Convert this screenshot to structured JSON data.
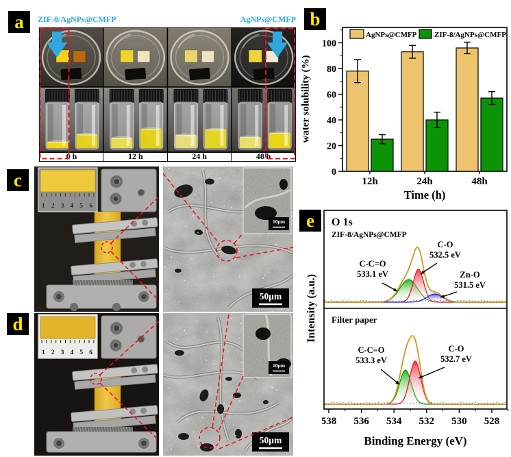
{
  "figure_labels": {
    "a": "a",
    "b": "b",
    "c": "c",
    "d": "d",
    "e": "e"
  },
  "panel_a": {
    "label_left": "ZIF-8/AgNPs@CMFP",
    "label_right": "AgNPs@CMFP",
    "timepoints": [
      "0 h",
      "12 h",
      "24 h",
      "48 h"
    ],
    "annotation_color": "#29ABE2",
    "highlight_color": "#F01020"
  },
  "panel_c": {
    "ruler_numbers": "1   2   3   4   5   6",
    "scale_main": "50μm",
    "scale_inset": "10μm"
  },
  "panel_d": {
    "ruler_numbers": "1   2   3   4   5   6",
    "scale_main": "50μm",
    "scale_inset": "10μm"
  },
  "chart_data": [
    {
      "type": "bar",
      "panel": "b",
      "categories": [
        "12h",
        "24h",
        "48h"
      ],
      "series": [
        {
          "name": "AgNPs@CMFP",
          "color": "#EDC36E",
          "values": [
            78,
            93,
            96
          ],
          "errors": [
            9,
            5,
            4.5
          ]
        },
        {
          "name": "ZIF-8/AgNPs@CMFP",
          "color": "#0B9405",
          "values": [
            25,
            40,
            57
          ],
          "errors": [
            3.5,
            6,
            5
          ]
        }
      ],
      "xlabel": "Time (h)",
      "ylabel": "water solubility (%)",
      "ylim": [
        0,
        112
      ],
      "yticks": [
        0,
        20,
        40,
        60,
        80,
        100
      ],
      "legend_position": "top-inside",
      "grid": false
    },
    {
      "type": "line",
      "panel": "e",
      "title": "O 1s",
      "xlabel": "Binding Energy (eV)",
      "ylabel": "Intensity (a.u.)",
      "x_range": [
        538.3,
        527.1
      ],
      "x_axis_reversed": true,
      "xticks": [
        538,
        536,
        534,
        532,
        530,
        528
      ],
      "envelope_color": "#D0991C",
      "subplots": [
        {
          "sample": "ZIF-8/AgNPs@CMFP",
          "envelope_height": 0.8,
          "peaks": [
            {
              "assignment": "C-C=O",
              "energy": "533.1 eV",
              "center": 533.1,
              "sigma": 0.55,
              "height": 0.33,
              "color": "#00A400",
              "label_pos": [
                74,
                86
              ],
              "arrow": [
                88,
                110,
                110,
                122
              ]
            },
            {
              "assignment": "C-O",
              "energy": "532.5 eV",
              "center": 532.5,
              "sigma": 0.32,
              "height": 0.48,
              "color": "#F01828",
              "label_pos": [
                180,
                58
              ],
              "arrow": [
                168,
                81,
                144,
                97
              ]
            },
            {
              "assignment": "Zn-O",
              "energy": "531.5 eV",
              "center": 531.5,
              "sigma": 0.48,
              "height": 0.12,
              "color": "#2828E0",
              "label_pos": [
                216,
                102
              ],
              "arrow": [
                197,
                123,
                173,
                131
              ]
            }
          ]
        },
        {
          "sample": "Filter paper",
          "envelope_height": 1.0,
          "peaks": [
            {
              "assignment": "C-C=O",
              "energy": "533.3 eV",
              "center": 533.3,
              "sigma": 0.36,
              "height": 0.5,
              "color": "#00A400",
              "label_pos": [
                72,
                212
              ],
              "arrow": [
                86,
                236,
                113,
                258
              ]
            },
            {
              "assignment": "C-O",
              "energy": "532.7 eV",
              "center": 532.7,
              "sigma": 0.34,
              "height": 0.63,
              "color": "#F01828",
              "label_pos": [
                196,
                210
              ],
              "arrow": [
                179,
                233,
                141,
                249
              ]
            }
          ]
        }
      ]
    }
  ]
}
